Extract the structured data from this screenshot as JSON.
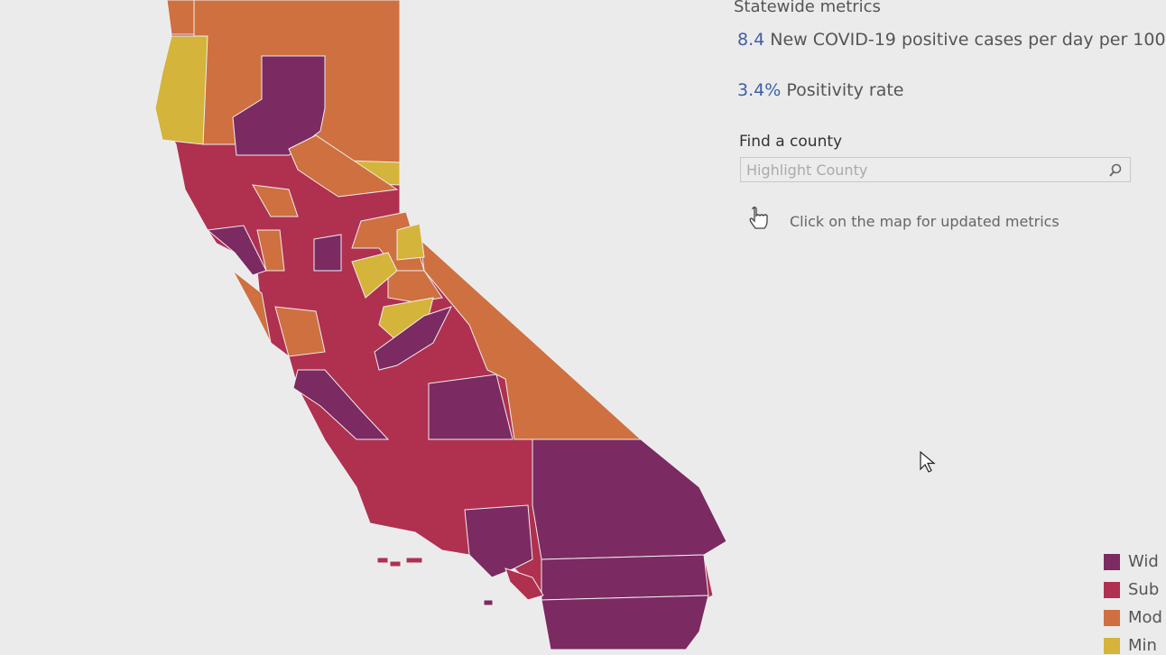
{
  "panel": {
    "title": "Statewide metrics",
    "metrics": [
      {
        "value": "8.4",
        "label": "New COVID-19 positive cases per day per 100"
      },
      {
        "value": "3.4%",
        "label": "Positivity rate"
      }
    ],
    "search": {
      "label": "Find a county",
      "placeholder": "Highlight County"
    },
    "hint": "Click on the map for updated metrics"
  },
  "legend": [
    "Wid",
    "Sub",
    "Mod",
    "Min"
  ]
}
